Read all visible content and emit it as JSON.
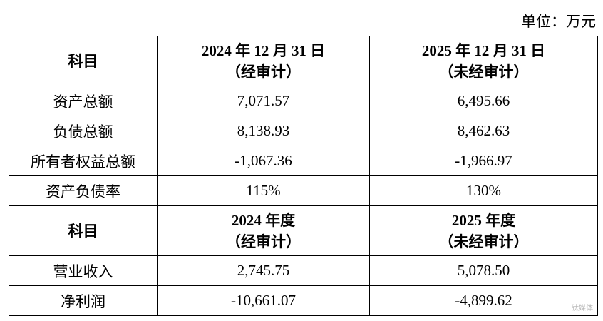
{
  "unit": "单位：万元",
  "table": {
    "sections": [
      {
        "header": [
          "科目",
          [
            "2024 年 12 月 31 日",
            "（经审计）"
          ],
          [
            "2025 年 12 月 31 日",
            "（未经审计）"
          ]
        ],
        "rows": [
          [
            "资产总额",
            "7,071.57",
            "6,495.66"
          ],
          [
            "负债总额",
            "8,138.93",
            "8,462.63"
          ],
          [
            "所有者权益总额",
            "-1,067.36",
            "-1,966.97"
          ],
          [
            "资产负债率",
            "115%",
            "130%"
          ]
        ]
      },
      {
        "header": [
          "科目",
          [
            "2024 年度",
            "（经审计）"
          ],
          [
            "2025 年度",
            "（未经审计）"
          ]
        ],
        "rows": [
          [
            "营业收入",
            "2,745.75",
            "5,078.50"
          ],
          [
            "净利润",
            "-10,661.07",
            "-4,899.62"
          ]
        ]
      }
    ]
  },
  "watermark": "钛媒体"
}
